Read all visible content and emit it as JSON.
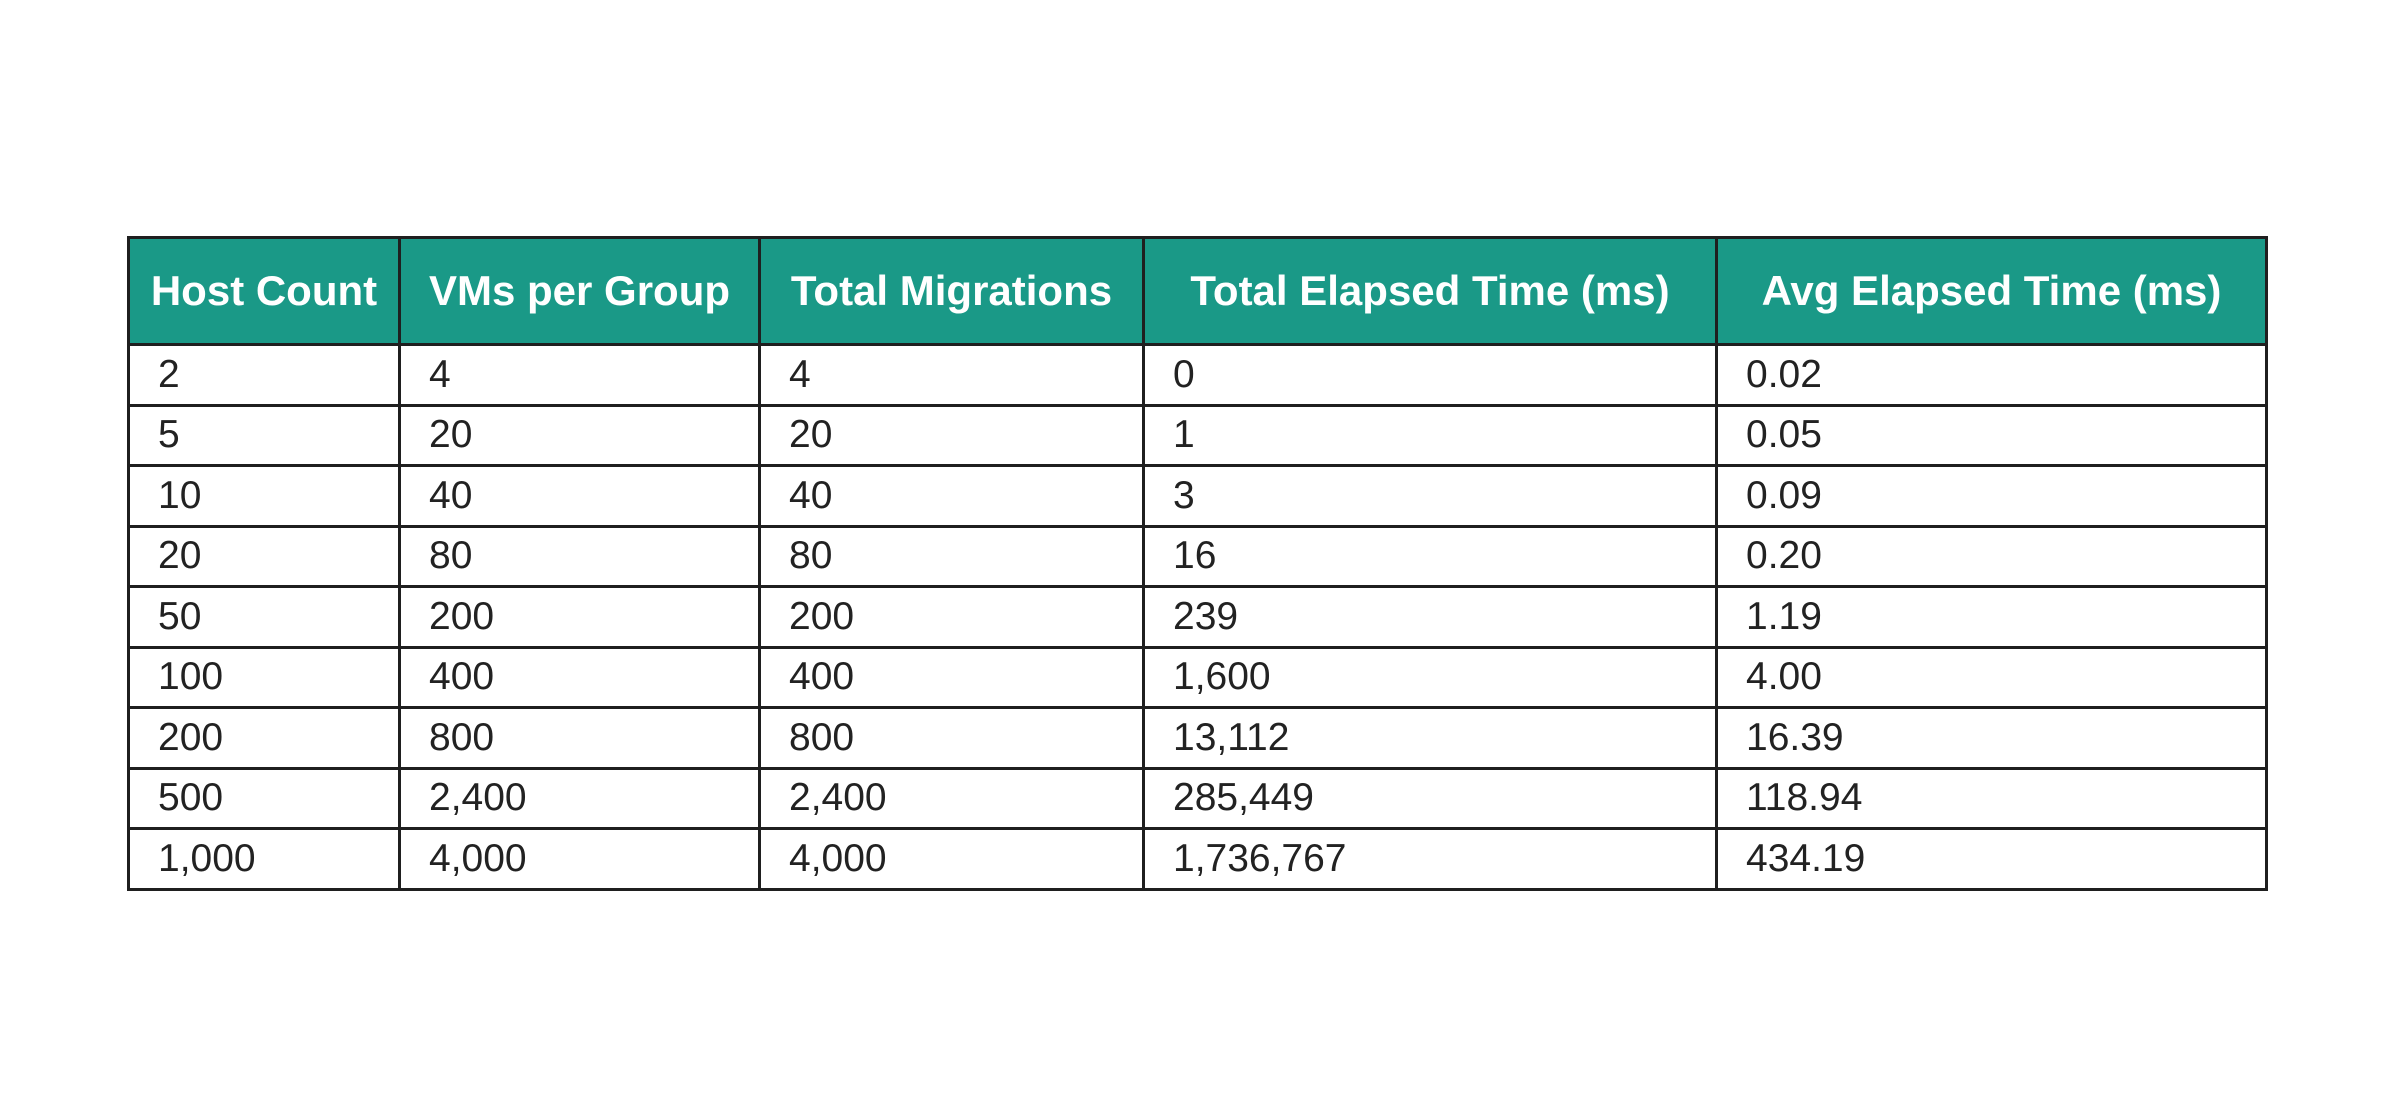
{
  "colors": {
    "header_background": "#1a9987",
    "header_text": "#ffffff",
    "cell_text": "#222222",
    "border": "#1f1f1f"
  },
  "chart_data": {
    "type": "table",
    "columns": [
      "Host Count",
      "VMs per Group",
      "Total Migrations",
      "Total Elapsed Time (ms)",
      "Avg Elapsed Time (ms)"
    ],
    "rows": [
      [
        "2",
        "4",
        "4",
        "0",
        "0.02"
      ],
      [
        "5",
        "20",
        "20",
        "1",
        "0.05"
      ],
      [
        "10",
        "40",
        "40",
        "3",
        "0.09"
      ],
      [
        "20",
        "80",
        "80",
        "16",
        "0.20"
      ],
      [
        "50",
        "200",
        "200",
        "239",
        "1.19"
      ],
      [
        "100",
        "400",
        "400",
        "1,600",
        "4.00"
      ],
      [
        "200",
        "800",
        "800",
        "13,112",
        "16.39"
      ],
      [
        "500",
        "2,400",
        "2,400",
        "285,449",
        "118.94"
      ],
      [
        "1,000",
        "4,000",
        "4,000",
        "1,736,767",
        "434.19"
      ]
    ]
  }
}
